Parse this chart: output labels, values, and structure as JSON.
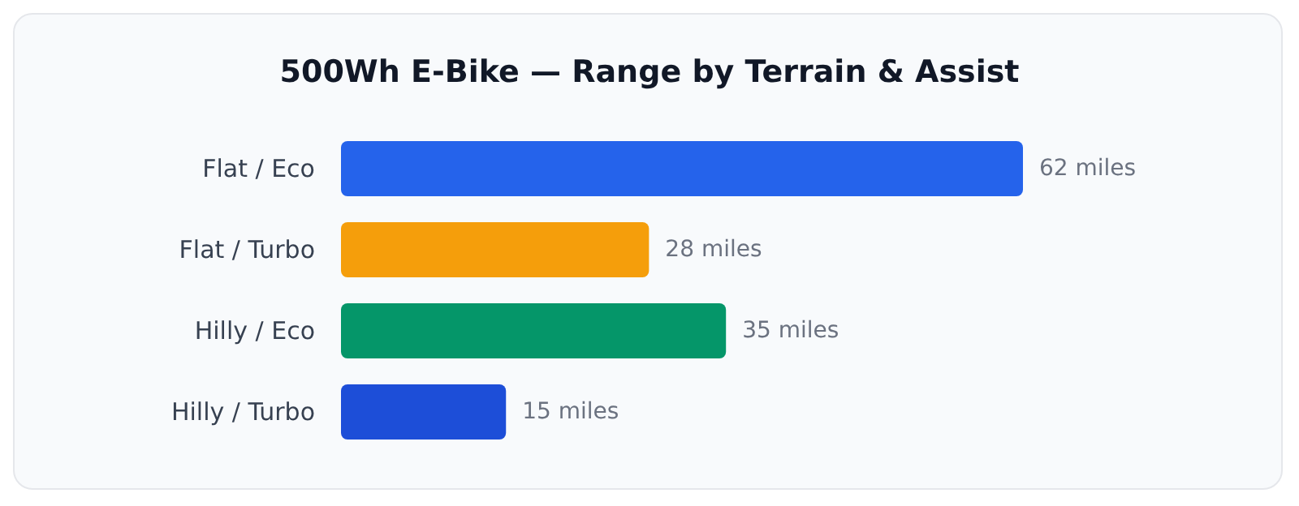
{
  "chart_data": {
    "type": "bar",
    "orientation": "horizontal",
    "title": "500Wh E-Bike — Range by Terrain & Assist",
    "categories": [
      "Flat / Eco",
      "Flat / Turbo",
      "Hilly / Eco",
      "Hilly / Turbo"
    ],
    "values": [
      62,
      28,
      35,
      15
    ],
    "colors": [
      "#2563eb",
      "#f59e0b",
      "#059669",
      "#1d4ed8"
    ],
    "value_labels": [
      "62 miles",
      "28 miles",
      "35 miles",
      "15 miles"
    ]
  }
}
